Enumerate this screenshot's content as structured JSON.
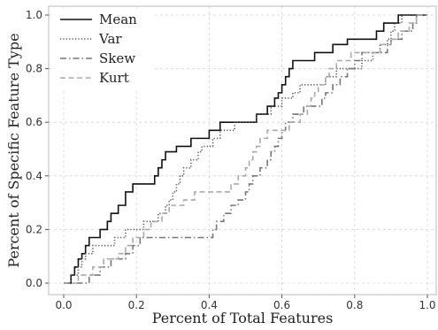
{
  "chart_data": {
    "type": "line",
    "title": "",
    "xlabel": "Percent of Total Features",
    "ylabel": "Percent of Specific Feature Type",
    "xlim": [
      0.0,
      1.0
    ],
    "ylim": [
      0.0,
      1.0
    ],
    "xticks": [
      "0.0",
      "0.2",
      "0.4",
      "0.6",
      "0.8",
      "1.0"
    ],
    "yticks": [
      "0.0",
      "0.2",
      "0.4",
      "0.6",
      "0.8",
      "1.0"
    ],
    "grid": true,
    "legend_position": "top-left",
    "series": [
      {
        "name": "Mean",
        "color": "#111111",
        "dash": "solid",
        "x": [
          0.0,
          0.02,
          0.03,
          0.04,
          0.05,
          0.06,
          0.07,
          0.09,
          0.1,
          0.12,
          0.13,
          0.15,
          0.17,
          0.19,
          0.24,
          0.25,
          0.26,
          0.27,
          0.28,
          0.29,
          0.31,
          0.33,
          0.35,
          0.37,
          0.38,
          0.4,
          0.43,
          0.44,
          0.46,
          0.48,
          0.5,
          0.53,
          0.56,
          0.58,
          0.59,
          0.6,
          0.61,
          0.62,
          0.63,
          0.64,
          0.68,
          0.69,
          0.73,
          0.74,
          0.76,
          0.78,
          0.8,
          0.81,
          0.82,
          0.84,
          0.86,
          0.87,
          0.88,
          0.89,
          0.9,
          0.91,
          0.92,
          0.93,
          1.0
        ],
        "y": [
          0.0,
          0.03,
          0.06,
          0.09,
          0.11,
          0.14,
          0.17,
          0.17,
          0.2,
          0.23,
          0.26,
          0.29,
          0.34,
          0.37,
          0.37,
          0.4,
          0.43,
          0.46,
          0.49,
          0.49,
          0.51,
          0.51,
          0.54,
          0.54,
          0.54,
          0.57,
          0.6,
          0.6,
          0.6,
          0.6,
          0.6,
          0.63,
          0.66,
          0.69,
          0.71,
          0.74,
          0.77,
          0.8,
          0.83,
          0.83,
          0.83,
          0.86,
          0.86,
          0.89,
          0.89,
          0.91,
          0.91,
          0.91,
          0.91,
          0.91,
          0.94,
          0.94,
          0.97,
          0.97,
          0.97,
          0.97,
          1.0,
          1.0,
          1.0
        ]
      },
      {
        "name": "Var",
        "color": "#555555",
        "dash": "dotted",
        "x": [
          0.0,
          0.02,
          0.04,
          0.05,
          0.06,
          0.07,
          0.08,
          0.09,
          0.11,
          0.14,
          0.16,
          0.17,
          0.19,
          0.22,
          0.23,
          0.26,
          0.28,
          0.29,
          0.3,
          0.31,
          0.32,
          0.33,
          0.34,
          0.35,
          0.36,
          0.37,
          0.38,
          0.39,
          0.4,
          0.41,
          0.42,
          0.43,
          0.45,
          0.46,
          0.47,
          0.48,
          0.52,
          0.53,
          0.55,
          0.57,
          0.58,
          0.6,
          0.63,
          0.65,
          0.68,
          0.7,
          0.72,
          0.75,
          0.78,
          0.8,
          0.82,
          0.83,
          0.85,
          0.87,
          0.88,
          0.89,
          0.9,
          0.91,
          0.93,
          0.95,
          1.0
        ],
        "y": [
          0.0,
          0.03,
          0.06,
          0.09,
          0.11,
          0.11,
          0.14,
          0.14,
          0.14,
          0.17,
          0.17,
          0.2,
          0.2,
          0.23,
          0.23,
          0.26,
          0.29,
          0.31,
          0.34,
          0.37,
          0.4,
          0.43,
          0.43,
          0.46,
          0.46,
          0.49,
          0.51,
          0.51,
          0.51,
          0.54,
          0.54,
          0.57,
          0.57,
          0.57,
          0.6,
          0.6,
          0.6,
          0.63,
          0.63,
          0.66,
          0.66,
          0.69,
          0.71,
          0.74,
          0.74,
          0.74,
          0.77,
          0.8,
          0.8,
          0.8,
          0.83,
          0.83,
          0.86,
          0.89,
          0.89,
          0.91,
          0.94,
          0.97,
          1.0,
          1.0,
          1.0
        ]
      },
      {
        "name": "Skew",
        "color": "#777777",
        "dash": "dashdot",
        "x": [
          0.0,
          0.04,
          0.07,
          0.08,
          0.1,
          0.12,
          0.13,
          0.15,
          0.17,
          0.19,
          0.2,
          0.21,
          0.23,
          0.24,
          0.4,
          0.41,
          0.42,
          0.43,
          0.44,
          0.46,
          0.48,
          0.5,
          0.51,
          0.52,
          0.54,
          0.56,
          0.57,
          0.58,
          0.59,
          0.6,
          0.61,
          0.63,
          0.65,
          0.66,
          0.7,
          0.71,
          0.72,
          0.74,
          0.76,
          0.78,
          0.79,
          0.8,
          0.82,
          0.84,
          0.85,
          0.86,
          0.87,
          0.88,
          0.89,
          0.9,
          0.91,
          0.92,
          0.93,
          0.94,
          0.96,
          0.97,
          1.0
        ],
        "y": [
          0.0,
          0.0,
          0.03,
          0.03,
          0.06,
          0.06,
          0.09,
          0.09,
          0.11,
          0.14,
          0.14,
          0.17,
          0.17,
          0.17,
          0.17,
          0.2,
          0.23,
          0.23,
          0.26,
          0.29,
          0.31,
          0.34,
          0.37,
          0.4,
          0.43,
          0.46,
          0.49,
          0.51,
          0.54,
          0.57,
          0.6,
          0.63,
          0.63,
          0.66,
          0.66,
          0.69,
          0.71,
          0.74,
          0.77,
          0.8,
          0.8,
          0.83,
          0.86,
          0.86,
          0.86,
          0.86,
          0.86,
          0.86,
          0.89,
          0.91,
          0.91,
          0.91,
          0.94,
          0.94,
          0.97,
          1.0,
          1.0
        ]
      },
      {
        "name": "Kurt",
        "color": "#aaaaaa",
        "dash": "dashed",
        "x": [
          0.0,
          0.04,
          0.06,
          0.08,
          0.11,
          0.13,
          0.15,
          0.17,
          0.19,
          0.22,
          0.24,
          0.27,
          0.29,
          0.31,
          0.33,
          0.36,
          0.38,
          0.4,
          0.43,
          0.46,
          0.48,
          0.5,
          0.51,
          0.52,
          0.53,
          0.54,
          0.55,
          0.56,
          0.58,
          0.61,
          0.62,
          0.64,
          0.65,
          0.67,
          0.68,
          0.69,
          0.7,
          0.72,
          0.73,
          0.74,
          0.75,
          0.76,
          0.77,
          0.78,
          0.79,
          0.8,
          0.81,
          0.82,
          0.84,
          0.86,
          0.87,
          0.88,
          0.9,
          0.92,
          0.95,
          0.97,
          0.99,
          1.0
        ],
        "y": [
          0.0,
          0.03,
          0.03,
          0.06,
          0.09,
          0.09,
          0.11,
          0.14,
          0.17,
          0.2,
          0.23,
          0.26,
          0.29,
          0.29,
          0.31,
          0.34,
          0.34,
          0.34,
          0.34,
          0.37,
          0.4,
          0.43,
          0.46,
          0.49,
          0.51,
          0.54,
          0.54,
          0.57,
          0.57,
          0.57,
          0.6,
          0.6,
          0.63,
          0.66,
          0.69,
          0.71,
          0.74,
          0.77,
          0.8,
          0.8,
          0.83,
          0.83,
          0.83,
          0.83,
          0.86,
          0.86,
          0.86,
          0.86,
          0.86,
          0.86,
          0.89,
          0.89,
          0.91,
          0.94,
          0.97,
          1.0,
          1.0,
          1.0
        ]
      }
    ]
  }
}
